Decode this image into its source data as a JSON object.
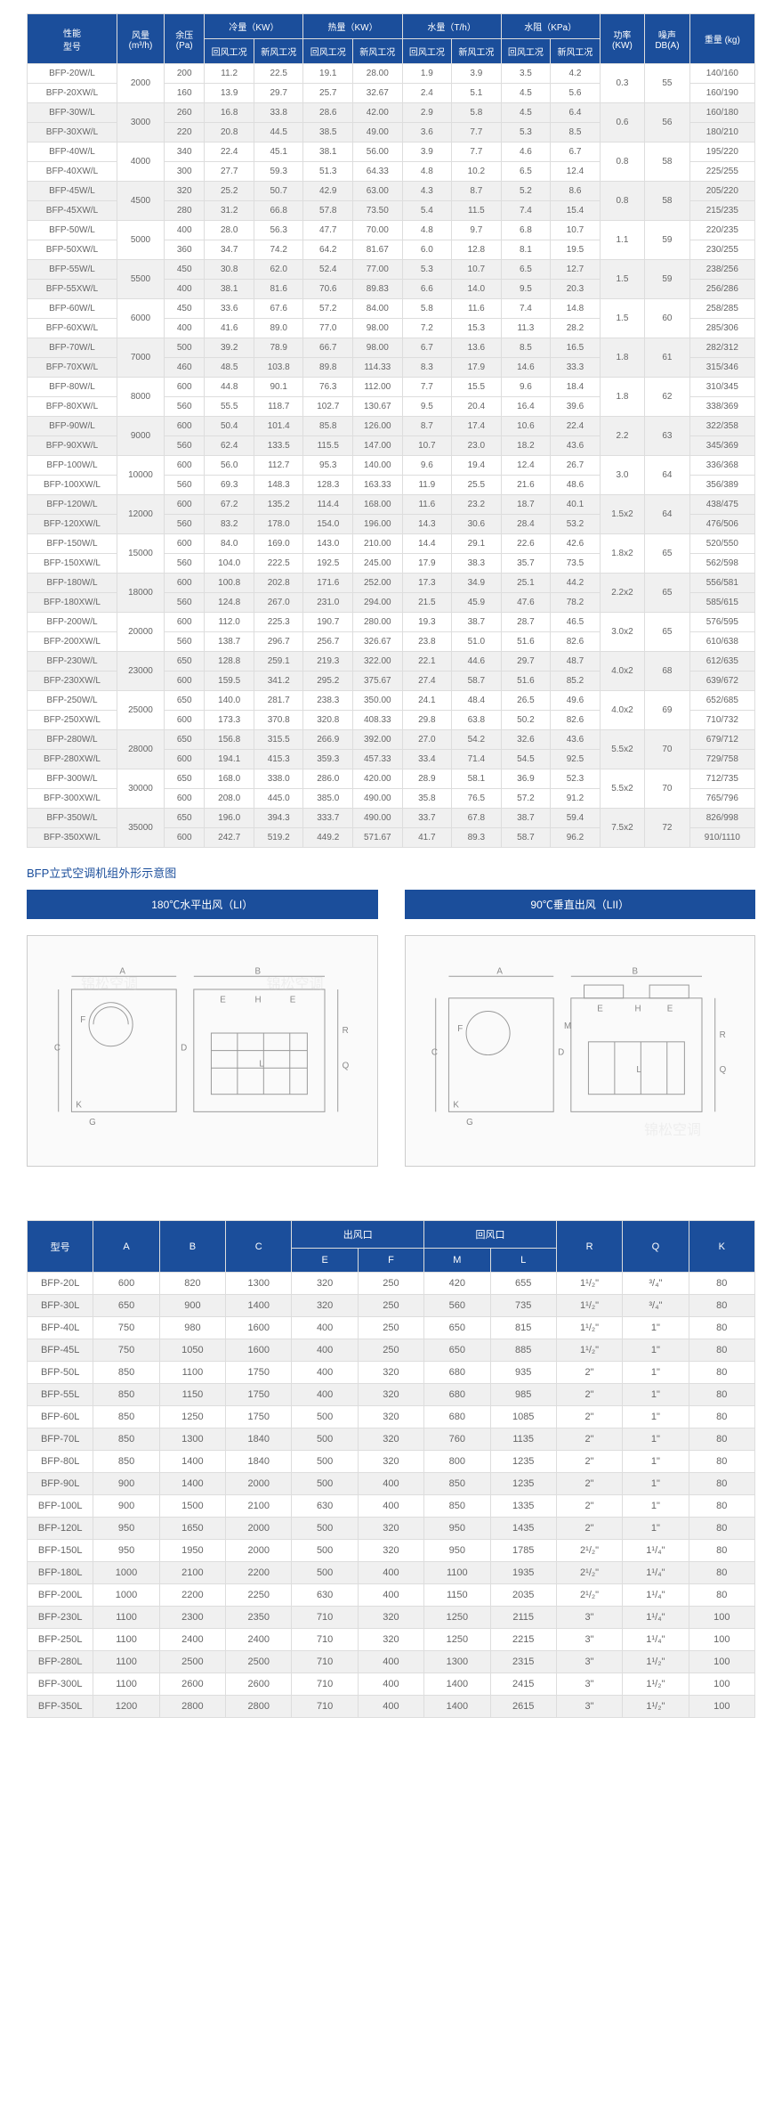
{
  "colors": {
    "brand": "#1b4e9b",
    "border": "#ddd",
    "alt": "#f0f0f0",
    "text": "#666"
  },
  "watermark": "锦松空调",
  "table1": {
    "headers": {
      "model": "型号",
      "performance": "性能",
      "airflow": "风量",
      "airflow_unit": "(m³/h)",
      "pressure": "余压",
      "pressure_unit": "(Pa)",
      "cooling": "冷量（KW）",
      "heating": "热量（KW）",
      "water": "水量（T/h）",
      "waterres": "水阻（KPa）",
      "return": "回风工况",
      "fresh": "新风工况",
      "power": "功率",
      "power_unit": "(KW)",
      "noise": "噪声",
      "noise_unit": "DB(A)",
      "weight": "重量 (kg)"
    },
    "group_cols": [
      "cooling",
      "heating",
      "water",
      "waterres"
    ],
    "rows": [
      {
        "m": "BFP-20W/L",
        "af": "2000",
        "yp": "200",
        "c1": "11.2",
        "c2": "22.5",
        "h1": "19.1",
        "h2": "28.00",
        "w1": "1.9",
        "w2": "3.9",
        "r1": "3.5",
        "r2": "4.2",
        "pw": "0.3",
        "db": "55",
        "kg": "140/160",
        "span": true
      },
      {
        "m": "BFP-20XW/L",
        "yp": "160",
        "c1": "13.9",
        "c2": "29.7",
        "h1": "25.7",
        "h2": "32.67",
        "w1": "2.4",
        "w2": "5.1",
        "r1": "4.5",
        "r2": "5.6",
        "kg": "160/190"
      },
      {
        "m": "BFP-30W/L",
        "af": "3000",
        "yp": "260",
        "c1": "16.8",
        "c2": "33.8",
        "h1": "28.6",
        "h2": "42.00",
        "w1": "2.9",
        "w2": "5.8",
        "r1": "4.5",
        "r2": "6.4",
        "pw": "0.6",
        "db": "56",
        "kg": "160/180",
        "span": true,
        "g": 1
      },
      {
        "m": "BFP-30XW/L",
        "yp": "220",
        "c1": "20.8",
        "c2": "44.5",
        "h1": "38.5",
        "h2": "49.00",
        "w1": "3.6",
        "w2": "7.7",
        "r1": "5.3",
        "r2": "8.5",
        "kg": "180/210",
        "g": 1
      },
      {
        "m": "BFP-40W/L",
        "af": "4000",
        "yp": "340",
        "c1": "22.4",
        "c2": "45.1",
        "h1": "38.1",
        "h2": "56.00",
        "w1": "3.9",
        "w2": "7.7",
        "r1": "4.6",
        "r2": "6.7",
        "pw": "0.8",
        "db": "58",
        "kg": "195/220",
        "span": true
      },
      {
        "m": "BFP-40XW/L",
        "yp": "300",
        "c1": "27.7",
        "c2": "59.3",
        "h1": "51.3",
        "h2": "64.33",
        "w1": "4.8",
        "w2": "10.2",
        "r1": "6.5",
        "r2": "12.4",
        "kg": "225/255"
      },
      {
        "m": "BFP-45W/L",
        "af": "4500",
        "yp": "320",
        "c1": "25.2",
        "c2": "50.7",
        "h1": "42.9",
        "h2": "63.00",
        "w1": "4.3",
        "w2": "8.7",
        "r1": "5.2",
        "r2": "8.6",
        "pw": "0.8",
        "db": "58",
        "kg": "205/220",
        "span": true,
        "g": 1
      },
      {
        "m": "BFP-45XW/L",
        "yp": "280",
        "c1": "31.2",
        "c2": "66.8",
        "h1": "57.8",
        "h2": "73.50",
        "w1": "5.4",
        "w2": "11.5",
        "r1": "7.4",
        "r2": "15.4",
        "kg": "215/235",
        "g": 1
      },
      {
        "m": "BFP-50W/L",
        "af": "5000",
        "yp": "400",
        "c1": "28.0",
        "c2": "56.3",
        "h1": "47.7",
        "h2": "70.00",
        "w1": "4.8",
        "w2": "9.7",
        "r1": "6.8",
        "r2": "10.7",
        "pw": "1.1",
        "db": "59",
        "kg": "220/235",
        "span": true
      },
      {
        "m": "BFP-50XW/L",
        "yp": "360",
        "c1": "34.7",
        "c2": "74.2",
        "h1": "64.2",
        "h2": "81.67",
        "w1": "6.0",
        "w2": "12.8",
        "r1": "8.1",
        "r2": "19.5",
        "kg": "230/255"
      },
      {
        "m": "BFP-55W/L",
        "af": "5500",
        "yp": "450",
        "c1": "30.8",
        "c2": "62.0",
        "h1": "52.4",
        "h2": "77.00",
        "w1": "5.3",
        "w2": "10.7",
        "r1": "6.5",
        "r2": "12.7",
        "pw": "1.5",
        "db": "59",
        "kg": "238/256",
        "span": true,
        "g": 1
      },
      {
        "m": "BFP-55XW/L",
        "yp": "400",
        "c1": "38.1",
        "c2": "81.6",
        "h1": "70.6",
        "h2": "89.83",
        "w1": "6.6",
        "w2": "14.0",
        "r1": "9.5",
        "r2": "20.3",
        "kg": "256/286",
        "g": 1
      },
      {
        "m": "BFP-60W/L",
        "af": "6000",
        "yp": "450",
        "c1": "33.6",
        "c2": "67.6",
        "h1": "57.2",
        "h2": "84.00",
        "w1": "5.8",
        "w2": "11.6",
        "r1": "7.4",
        "r2": "14.8",
        "pw": "1.5",
        "db": "60",
        "kg": "258/285",
        "span": true
      },
      {
        "m": "BFP-60XW/L",
        "yp": "400",
        "c1": "41.6",
        "c2": "89.0",
        "h1": "77.0",
        "h2": "98.00",
        "w1": "7.2",
        "w2": "15.3",
        "r1": "11.3",
        "r2": "28.2",
        "kg": "285/306"
      },
      {
        "m": "BFP-70W/L",
        "af": "7000",
        "yp": "500",
        "c1": "39.2",
        "c2": "78.9",
        "h1": "66.7",
        "h2": "98.00",
        "w1": "6.7",
        "w2": "13.6",
        "r1": "8.5",
        "r2": "16.5",
        "pw": "1.8",
        "db": "61",
        "kg": "282/312",
        "span": true,
        "g": 1
      },
      {
        "m": "BFP-70XW/L",
        "yp": "460",
        "c1": "48.5",
        "c2": "103.8",
        "h1": "89.8",
        "h2": "114.33",
        "w1": "8.3",
        "w2": "17.9",
        "r1": "14.6",
        "r2": "33.3",
        "kg": "315/346",
        "g": 1
      },
      {
        "m": "BFP-80W/L",
        "af": "8000",
        "yp": "600",
        "c1": "44.8",
        "c2": "90.1",
        "h1": "76.3",
        "h2": "112.00",
        "w1": "7.7",
        "w2": "15.5",
        "r1": "9.6",
        "r2": "18.4",
        "pw": "1.8",
        "db": "62",
        "kg": "310/345",
        "span": true
      },
      {
        "m": "BFP-80XW/L",
        "yp": "560",
        "c1": "55.5",
        "c2": "118.7",
        "h1": "102.7",
        "h2": "130.67",
        "w1": "9.5",
        "w2": "20.4",
        "r1": "16.4",
        "r2": "39.6",
        "kg": "338/369"
      },
      {
        "m": "BFP-90W/L",
        "af": "9000",
        "yp": "600",
        "c1": "50.4",
        "c2": "101.4",
        "h1": "85.8",
        "h2": "126.00",
        "w1": "8.7",
        "w2": "17.4",
        "r1": "10.6",
        "r2": "22.4",
        "pw": "2.2",
        "db": "63",
        "kg": "322/358",
        "span": true,
        "g": 1
      },
      {
        "m": "BFP-90XW/L",
        "yp": "560",
        "c1": "62.4",
        "c2": "133.5",
        "h1": "115.5",
        "h2": "147.00",
        "w1": "10.7",
        "w2": "23.0",
        "r1": "18.2",
        "r2": "43.6",
        "kg": "345/369",
        "g": 1
      },
      {
        "m": "BFP-100W/L",
        "af": "10000",
        "yp": "600",
        "c1": "56.0",
        "c2": "112.7",
        "h1": "95.3",
        "h2": "140.00",
        "w1": "9.6",
        "w2": "19.4",
        "r1": "12.4",
        "r2": "26.7",
        "pw": "3.0",
        "db": "64",
        "kg": "336/368",
        "span": true
      },
      {
        "m": "BFP-100XW/L",
        "yp": "560",
        "c1": "69.3",
        "c2": "148.3",
        "h1": "128.3",
        "h2": "163.33",
        "w1": "11.9",
        "w2": "25.5",
        "r1": "21.6",
        "r2": "48.6",
        "kg": "356/389"
      },
      {
        "m": "BFP-120W/L",
        "af": "12000",
        "yp": "600",
        "c1": "67.2",
        "c2": "135.2",
        "h1": "114.4",
        "h2": "168.00",
        "w1": "11.6",
        "w2": "23.2",
        "r1": "18.7",
        "r2": "40.1",
        "pw": "1.5x2",
        "db": "64",
        "kg": "438/475",
        "span": true,
        "g": 1
      },
      {
        "m": "BFP-120XW/L",
        "yp": "560",
        "c1": "83.2",
        "c2": "178.0",
        "h1": "154.0",
        "h2": "196.00",
        "w1": "14.3",
        "w2": "30.6",
        "r1": "28.4",
        "r2": "53.2",
        "kg": "476/506",
        "g": 1
      },
      {
        "m": "BFP-150W/L",
        "af": "15000",
        "yp": "600",
        "c1": "84.0",
        "c2": "169.0",
        "h1": "143.0",
        "h2": "210.00",
        "w1": "14.4",
        "w2": "29.1",
        "r1": "22.6",
        "r2": "42.6",
        "pw": "1.8x2",
        "db": "65",
        "kg": "520/550",
        "span": true
      },
      {
        "m": "BFP-150XW/L",
        "yp": "560",
        "c1": "104.0",
        "c2": "222.5",
        "h1": "192.5",
        "h2": "245.00",
        "w1": "17.9",
        "w2": "38.3",
        "r1": "35.7",
        "r2": "73.5",
        "kg": "562/598"
      },
      {
        "m": "BFP-180W/L",
        "af": "18000",
        "yp": "600",
        "c1": "100.8",
        "c2": "202.8",
        "h1": "171.6",
        "h2": "252.00",
        "w1": "17.3",
        "w2": "34.9",
        "r1": "25.1",
        "r2": "44.2",
        "pw": "2.2x2",
        "db": "65",
        "kg": "556/581",
        "span": true,
        "g": 1
      },
      {
        "m": "BFP-180XW/L",
        "yp": "560",
        "c1": "124.8",
        "c2": "267.0",
        "h1": "231.0",
        "h2": "294.00",
        "w1": "21.5",
        "w2": "45.9",
        "r1": "47.6",
        "r2": "78.2",
        "kg": "585/615",
        "g": 1
      },
      {
        "m": "BFP-200W/L",
        "af": "20000",
        "yp": "600",
        "c1": "112.0",
        "c2": "225.3",
        "h1": "190.7",
        "h2": "280.00",
        "w1": "19.3",
        "w2": "38.7",
        "r1": "28.7",
        "r2": "46.5",
        "pw": "3.0x2",
        "db": "65",
        "kg": "576/595",
        "span": true
      },
      {
        "m": "BFP-200XW/L",
        "yp": "560",
        "c1": "138.7",
        "c2": "296.7",
        "h1": "256.7",
        "h2": "326.67",
        "w1": "23.8",
        "w2": "51.0",
        "r1": "51.6",
        "r2": "82.6",
        "kg": "610/638"
      },
      {
        "m": "BFP-230W/L",
        "af": "23000",
        "yp": "650",
        "c1": "128.8",
        "c2": "259.1",
        "h1": "219.3",
        "h2": "322.00",
        "w1": "22.1",
        "w2": "44.6",
        "r1": "29.7",
        "r2": "48.7",
        "pw": "4.0x2",
        "db": "68",
        "kg": "612/635",
        "span": true,
        "g": 1
      },
      {
        "m": "BFP-230XW/L",
        "yp": "600",
        "c1": "159.5",
        "c2": "341.2",
        "h1": "295.2",
        "h2": "375.67",
        "w1": "27.4",
        "w2": "58.7",
        "r1": "51.6",
        "r2": "85.2",
        "kg": "639/672",
        "g": 1
      },
      {
        "m": "BFP-250W/L",
        "af": "25000",
        "yp": "650",
        "c1": "140.0",
        "c2": "281.7",
        "h1": "238.3",
        "h2": "350.00",
        "w1": "24.1",
        "w2": "48.4",
        "r1": "26.5",
        "r2": "49.6",
        "pw": "4.0x2",
        "db": "69",
        "kg": "652/685",
        "span": true
      },
      {
        "m": "BFP-250XW/L",
        "yp": "600",
        "c1": "173.3",
        "c2": "370.8",
        "h1": "320.8",
        "h2": "408.33",
        "w1": "29.8",
        "w2": "63.8",
        "r1": "50.2",
        "r2": "82.6",
        "kg": "710/732"
      },
      {
        "m": "BFP-280W/L",
        "af": "28000",
        "yp": "650",
        "c1": "156.8",
        "c2": "315.5",
        "h1": "266.9",
        "h2": "392.00",
        "w1": "27.0",
        "w2": "54.2",
        "r1": "32.6",
        "r2": "43.6",
        "pw": "5.5x2",
        "db": "70",
        "kg": "679/712",
        "span": true,
        "g": 1
      },
      {
        "m": "BFP-280XW/L",
        "yp": "600",
        "c1": "194.1",
        "c2": "415.3",
        "h1": "359.3",
        "h2": "457.33",
        "w1": "33.4",
        "w2": "71.4",
        "r1": "54.5",
        "r2": "92.5",
        "kg": "729/758",
        "g": 1
      },
      {
        "m": "BFP-300W/L",
        "af": "30000",
        "yp": "650",
        "c1": "168.0",
        "c2": "338.0",
        "h1": "286.0",
        "h2": "420.00",
        "w1": "28.9",
        "w2": "58.1",
        "r1": "36.9",
        "r2": "52.3",
        "pw": "5.5x2",
        "db": "70",
        "kg": "712/735",
        "span": true
      },
      {
        "m": "BFP-300XW/L",
        "yp": "600",
        "c1": "208.0",
        "c2": "445.0",
        "h1": "385.0",
        "h2": "490.00",
        "w1": "35.8",
        "w2": "76.5",
        "r1": "57.2",
        "r2": "91.2",
        "kg": "765/796"
      },
      {
        "m": "BFP-350W/L",
        "af": "35000",
        "yp": "650",
        "c1": "196.0",
        "c2": "394.3",
        "h1": "333.7",
        "h2": "490.00",
        "w1": "33.7",
        "w2": "67.8",
        "r1": "38.7",
        "r2": "59.4",
        "pw": "7.5x2",
        "db": "72",
        "kg": "826/998",
        "span": true,
        "g": 1
      },
      {
        "m": "BFP-350XW/L",
        "yp": "600",
        "c1": "242.7",
        "c2": "519.2",
        "h1": "449.2",
        "h2": "571.67",
        "w1": "41.7",
        "w2": "89.3",
        "r1": "58.7",
        "r2": "96.2",
        "kg": "910/1110",
        "g": 1
      }
    ]
  },
  "diagram": {
    "section_title": "BFP立式空调机组外形示意图",
    "left_title": "180℃水平出风（LI）",
    "right_title": "90℃垂直出风（LII）",
    "labels": [
      "A",
      "B",
      "C",
      "D",
      "E",
      "F",
      "G",
      "H",
      "K",
      "L",
      "M",
      "Q",
      "R"
    ]
  },
  "table2": {
    "headers": {
      "model": "型号",
      "A": "A",
      "B": "B",
      "C": "C",
      "outlet": "出风口",
      "E": "E",
      "F": "F",
      "inlet": "回风口",
      "M": "M",
      "L": "L",
      "R": "R",
      "Q": "Q",
      "K": "K"
    },
    "rows": [
      {
        "m": "BFP-20L",
        "A": "600",
        "B": "820",
        "C": "1300",
        "E": "320",
        "F": "250",
        "M": "420",
        "L": "655",
        "R": "1¹/₂\"",
        "Q": "³/₄\"",
        "K": "80"
      },
      {
        "m": "BFP-30L",
        "A": "650",
        "B": "900",
        "C": "1400",
        "E": "320",
        "F": "250",
        "M": "560",
        "L": "735",
        "R": "1¹/₂\"",
        "Q": "³/₄\"",
        "K": "80"
      },
      {
        "m": "BFP-40L",
        "A": "750",
        "B": "980",
        "C": "1600",
        "E": "400",
        "F": "250",
        "M": "650",
        "L": "815",
        "R": "1¹/₂\"",
        "Q": "1\"",
        "K": "80"
      },
      {
        "m": "BFP-45L",
        "A": "750",
        "B": "1050",
        "C": "1600",
        "E": "400",
        "F": "250",
        "M": "650",
        "L": "885",
        "R": "1¹/₂\"",
        "Q": "1\"",
        "K": "80"
      },
      {
        "m": "BFP-50L",
        "A": "850",
        "B": "1100",
        "C": "1750",
        "E": "400",
        "F": "320",
        "M": "680",
        "L": "935",
        "R": "2\"",
        "Q": "1\"",
        "K": "80"
      },
      {
        "m": "BFP-55L",
        "A": "850",
        "B": "1150",
        "C": "1750",
        "E": "400",
        "F": "320",
        "M": "680",
        "L": "985",
        "R": "2\"",
        "Q": "1\"",
        "K": "80"
      },
      {
        "m": "BFP-60L",
        "A": "850",
        "B": "1250",
        "C": "1750",
        "E": "500",
        "F": "320",
        "M": "680",
        "L": "1085",
        "R": "2\"",
        "Q": "1\"",
        "K": "80"
      },
      {
        "m": "BFP-70L",
        "A": "850",
        "B": "1300",
        "C": "1840",
        "E": "500",
        "F": "320",
        "M": "760",
        "L": "1135",
        "R": "2\"",
        "Q": "1\"",
        "K": "80"
      },
      {
        "m": "BFP-80L",
        "A": "850",
        "B": "1400",
        "C": "1840",
        "E": "500",
        "F": "320",
        "M": "800",
        "L": "1235",
        "R": "2\"",
        "Q": "1\"",
        "K": "80"
      },
      {
        "m": "BFP-90L",
        "A": "900",
        "B": "1400",
        "C": "2000",
        "E": "500",
        "F": "400",
        "M": "850",
        "L": "1235",
        "R": "2\"",
        "Q": "1\"",
        "K": "80"
      },
      {
        "m": "BFP-100L",
        "A": "900",
        "B": "1500",
        "C": "2100",
        "E": "630",
        "F": "400",
        "M": "850",
        "L": "1335",
        "R": "2\"",
        "Q": "1\"",
        "K": "80"
      },
      {
        "m": "BFP-120L",
        "A": "950",
        "B": "1650",
        "C": "2000",
        "E": "500",
        "F": "320",
        "M": "950",
        "L": "1435",
        "R": "2\"",
        "Q": "1\"",
        "K": "80"
      },
      {
        "m": "BFP-150L",
        "A": "950",
        "B": "1950",
        "C": "2000",
        "E": "500",
        "F": "320",
        "M": "950",
        "L": "1785",
        "R": "2¹/₂\"",
        "Q": "1¹/₄\"",
        "K": "80"
      },
      {
        "m": "BFP-180L",
        "A": "1000",
        "B": "2100",
        "C": "2200",
        "E": "500",
        "F": "400",
        "M": "1100",
        "L": "1935",
        "R": "2¹/₂\"",
        "Q": "1¹/₄\"",
        "K": "80"
      },
      {
        "m": "BFP-200L",
        "A": "1000",
        "B": "2200",
        "C": "2250",
        "E": "630",
        "F": "400",
        "M": "1150",
        "L": "2035",
        "R": "2¹/₂\"",
        "Q": "1¹/₄\"",
        "K": "80"
      },
      {
        "m": "BFP-230L",
        "A": "1100",
        "B": "2300",
        "C": "2350",
        "E": "710",
        "F": "320",
        "M": "1250",
        "L": "2115",
        "R": "3\"",
        "Q": "1¹/₄\"",
        "K": "100"
      },
      {
        "m": "BFP-250L",
        "A": "1100",
        "B": "2400",
        "C": "2400",
        "E": "710",
        "F": "320",
        "M": "1250",
        "L": "2215",
        "R": "3\"",
        "Q": "1¹/₄\"",
        "K": "100"
      },
      {
        "m": "BFP-280L",
        "A": "1100",
        "B": "2500",
        "C": "2500",
        "E": "710",
        "F": "400",
        "M": "1300",
        "L": "2315",
        "R": "3\"",
        "Q": "1¹/₂\"",
        "K": "100"
      },
      {
        "m": "BFP-300L",
        "A": "1100",
        "B": "2600",
        "C": "2600",
        "E": "710",
        "F": "400",
        "M": "1400",
        "L": "2415",
        "R": "3\"",
        "Q": "1¹/₂\"",
        "K": "100"
      },
      {
        "m": "BFP-350L",
        "A": "1200",
        "B": "2800",
        "C": "2800",
        "E": "710",
        "F": "400",
        "M": "1400",
        "L": "2615",
        "R": "3\"",
        "Q": "1¹/₂\"",
        "K": "100"
      }
    ]
  }
}
